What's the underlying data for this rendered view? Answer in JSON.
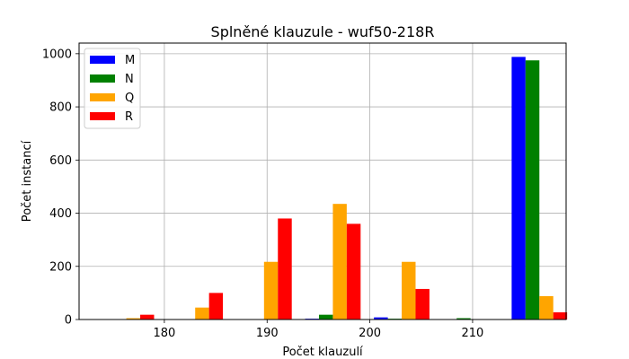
{
  "chart_data": {
    "type": "bar",
    "title": "Splněné klauzule - wuf50-218R",
    "xlabel": "Počet klauzulí",
    "ylabel": "Počet instancí",
    "xlim": [
      171.7,
      219.1
    ],
    "ylim": [
      0,
      1040
    ],
    "xticks": [
      180,
      190,
      200,
      210
    ],
    "yticks": [
      0,
      200,
      400,
      600,
      800,
      1000
    ],
    "grid": true,
    "legend_position": "top-left",
    "bin_width": 1.35,
    "bins": [
      176.3,
      183.0,
      189.7,
      196.4,
      203.1,
      209.8,
      216.5
    ],
    "series": [
      {
        "name": "M",
        "color": "#0000ff",
        "values": [
          0,
          0,
          0,
          3,
          8,
          0,
          988
        ]
      },
      {
        "name": "N",
        "color": "#008000",
        "values": [
          0,
          0,
          0,
          18,
          3,
          5,
          975
        ]
      },
      {
        "name": "Q",
        "color": "#ffa500",
        "values": [
          5,
          45,
          217,
          435,
          217,
          0,
          88
        ]
      },
      {
        "name": "R",
        "color": "#ff0000",
        "values": [
          18,
          100,
          380,
          360,
          115,
          0,
          27
        ]
      }
    ]
  }
}
